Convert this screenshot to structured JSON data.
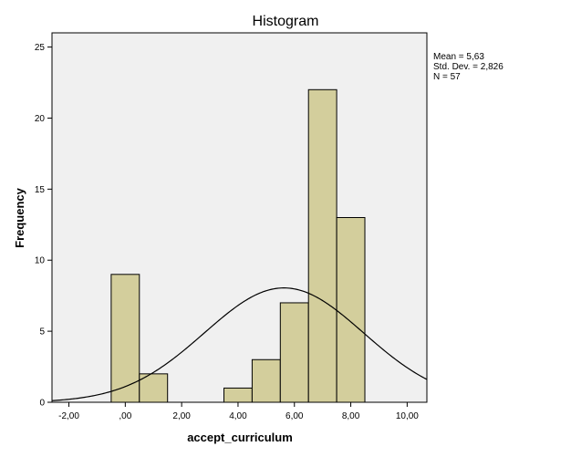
{
  "chart_data": {
    "type": "bar",
    "title": "Histogram",
    "xlabel": "accept_curriculum",
    "ylabel": "Frequency",
    "xlim": [
      -2.6,
      10.7
    ],
    "ylim": [
      0,
      26
    ],
    "x_ticks": [
      -2,
      0,
      2,
      4,
      6,
      8,
      10
    ],
    "x_tick_labels": [
      "-2,00",
      ",00",
      "2,00",
      "4,00",
      "6,00",
      "8,00",
      "10,00"
    ],
    "y_ticks": [
      0,
      5,
      10,
      15,
      20,
      25
    ],
    "y_tick_labels": [
      "0",
      "5",
      "10",
      "15",
      "20",
      "25"
    ],
    "bins": [
      {
        "x0": -0.5,
        "x1": 0.5,
        "count": 9
      },
      {
        "x0": 0.5,
        "x1": 1.5,
        "count": 2
      },
      {
        "x0": 3.5,
        "x1": 4.5,
        "count": 1
      },
      {
        "x0": 4.5,
        "x1": 5.5,
        "count": 3
      },
      {
        "x0": 5.5,
        "x1": 6.5,
        "count": 7
      },
      {
        "x0": 6.5,
        "x1": 7.5,
        "count": 22
      },
      {
        "x0": 7.5,
        "x1": 8.5,
        "count": 13
      }
    ],
    "normal_curve": {
      "mean": 5.63,
      "sd": 2.826,
      "n": 57,
      "bin_width": 1
    },
    "stats_text": [
      "Mean = 5,63",
      "Std. Dev. = 2,826",
      "N = 57"
    ],
    "colors": {
      "bar_fill": "#d3ce9c",
      "plot_bg": "#f0f0f0",
      "stroke": "#000000"
    }
  }
}
